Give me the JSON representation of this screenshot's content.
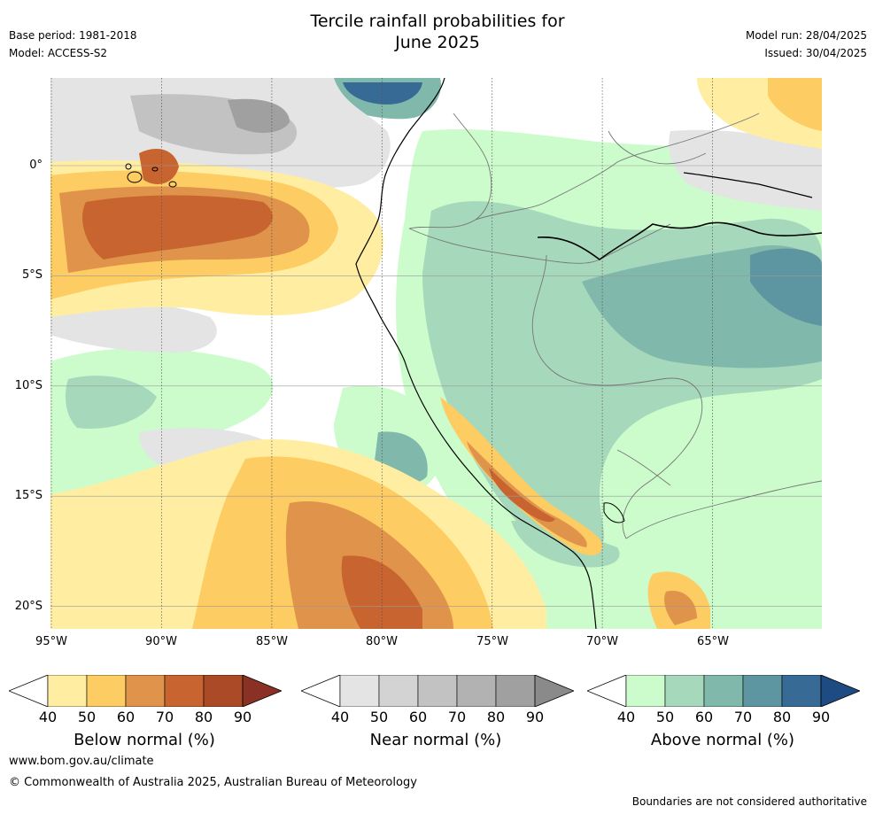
{
  "header": {
    "title_line1": "Tercile rainfall probabilities for",
    "title_line2": "June 2025",
    "base_period": "Base period: 1981-2018",
    "model": "Model: ACCESS-S2",
    "model_run": "Model run: 28/04/2025",
    "issued": "Issued: 30/04/2025"
  },
  "map": {
    "latitude_labels": [
      "0°",
      "5°S",
      "10°S",
      "15°S",
      "20°S"
    ],
    "longitude_labels": [
      "95°W",
      "90°W",
      "85°W",
      "80°W",
      "75°W",
      "70°W",
      "65°W"
    ],
    "extent": {
      "lon_min": -95,
      "lon_max": -60,
      "lat_min": -21,
      "lat_max": 4
    }
  },
  "legend": {
    "tick_values": [
      "40",
      "50",
      "60",
      "70",
      "80",
      "90"
    ],
    "below": {
      "label": "Below normal (%)",
      "colors": [
        "#ffeea2",
        "#fdcc62",
        "#e0934a",
        "#c8642f",
        "#ab4a27",
        "#8a3024"
      ]
    },
    "near": {
      "label": "Near normal (%)",
      "colors": [
        "#e4e4e4",
        "#d3d3d3",
        "#c2c2c2",
        "#b2b2b2",
        "#a0a0a0",
        "#8a8a8a"
      ]
    },
    "above": {
      "label": "Above normal (%)",
      "colors": [
        "#ccfccc",
        "#a6d8bb",
        "#80b8ab",
        "#5d96a1",
        "#386a96",
        "#1d4b82"
      ]
    }
  },
  "footer": {
    "url": "www.bom.gov.au/climate",
    "copyright": "© Commonwealth of Australia 2025, Australian Bureau of Meteorology",
    "disclaimer": "Boundaries are not considered authoritative"
  }
}
